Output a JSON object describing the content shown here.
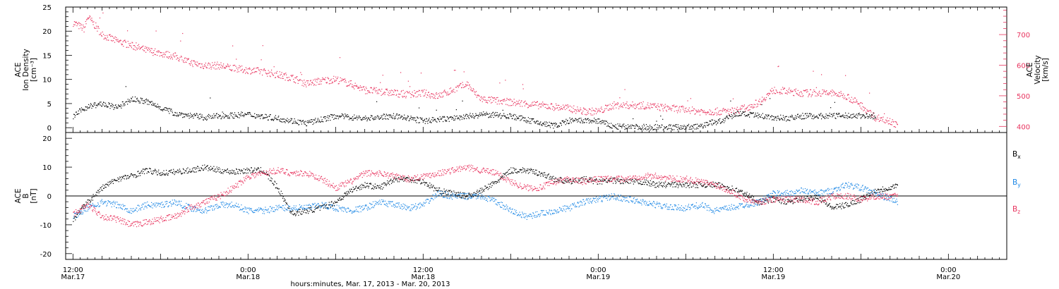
{
  "chart_data": [
    {
      "type": "scatter",
      "panel": "plasma",
      "ylabel_lines": [
        "ACE",
        "Ion Density",
        "[cm⁻³]"
      ],
      "y2label_lines": [
        "ACE",
        "Velocity",
        "[km/s]"
      ],
      "ylim": [
        -1,
        25
      ],
      "y_ticks": [
        0,
        5,
        10,
        15,
        20,
        25
      ],
      "y2lim": [
        380,
        790
      ],
      "y2_ticks": [
        400,
        500,
        600,
        700
      ],
      "colors": {
        "density": "#000000",
        "velocity": "#e8335e"
      },
      "series": [
        {
          "name": "",
          "axis": "left",
          "color": "#000000",
          "knots": [
            [
              0,
              2.5
            ],
            [
              2,
              4.5
            ],
            [
              4,
              5
            ],
            [
              6,
              4.2
            ],
            [
              8,
              6
            ],
            [
              10,
              5.5
            ],
            [
              14,
              3
            ],
            [
              18,
              2.2
            ],
            [
              20,
              2.5
            ],
            [
              24,
              2.8
            ],
            [
              28,
              2
            ],
            [
              32,
              1
            ],
            [
              36,
              2.5
            ],
            [
              40,
              2
            ],
            [
              44,
              2.5
            ],
            [
              48,
              1.5
            ],
            [
              52,
              2
            ],
            [
              56,
              2.8
            ],
            [
              60,
              2.5
            ],
            [
              64,
              1
            ],
            [
              66,
              0.5
            ],
            [
              68,
              1.5
            ],
            [
              72,
              1.5
            ],
            [
              74,
              0.3
            ],
            [
              78,
              0.2
            ],
            [
              82,
              0.2
            ],
            [
              86,
              0.3
            ],
            [
              87,
              1
            ],
            [
              89,
              1.5
            ],
            [
              91,
              3
            ],
            [
              94,
              2.5
            ],
            [
              98,
              2
            ],
            [
              100,
              2.5
            ],
            [
              104,
              2.5
            ],
            [
              108,
              2.6
            ],
            [
              110,
              2.2
            ]
          ]
        },
        {
          "name": "",
          "axis": "right",
          "color": "#e8335e",
          "knots": [
            [
              0,
              740
            ],
            [
              1.5,
              720
            ],
            [
              2,
              760
            ],
            [
              4,
              700
            ],
            [
              6,
              680
            ],
            [
              10,
              650
            ],
            [
              14,
              630
            ],
            [
              16,
              610
            ],
            [
              18,
              600
            ],
            [
              20,
              600
            ],
            [
              22,
              590
            ],
            [
              26,
              580
            ],
            [
              30,
              560
            ],
            [
              32,
              540
            ],
            [
              34,
              550
            ],
            [
              36,
              555
            ],
            [
              38,
              540
            ],
            [
              40,
              520
            ],
            [
              42,
              515
            ],
            [
              44,
              510
            ],
            [
              46,
              505
            ],
            [
              48,
              510
            ],
            [
              50,
              500
            ],
            [
              52,
              520
            ],
            [
              54,
              540
            ],
            [
              55,
              510
            ],
            [
              56,
              490
            ],
            [
              60,
              480
            ],
            [
              64,
              470
            ],
            [
              68,
              460
            ],
            [
              70,
              450
            ],
            [
              72,
              450
            ],
            [
              74,
              470
            ],
            [
              78,
              470
            ],
            [
              82,
              460
            ],
            [
              86,
              450
            ],
            [
              90,
              450
            ],
            [
              92,
              460
            ],
            [
              94,
              480
            ],
            [
              96,
              520
            ],
            [
              100,
              510
            ],
            [
              104,
              510
            ],
            [
              106,
              500
            ],
            [
              108,
              470
            ],
            [
              110,
              430
            ],
            [
              112,
              420
            ],
            [
              113,
              400
            ]
          ]
        }
      ]
    },
    {
      "type": "scatter",
      "panel": "imf",
      "ylabel_lines": [
        "ACE",
        "B",
        "[nT]"
      ],
      "ylim": [
        -22,
        22
      ],
      "y_ticks": [
        -20,
        -10,
        0,
        10,
        20
      ],
      "zero_line": true,
      "series": [
        {
          "name": "Bx",
          "color": "#000000",
          "knots": [
            [
              0,
              -8
            ],
            [
              2,
              -2
            ],
            [
              4,
              3
            ],
            [
              6,
              6
            ],
            [
              8,
              7
            ],
            [
              10,
              9
            ],
            [
              12,
              8
            ],
            [
              16,
              9
            ],
            [
              18,
              10
            ],
            [
              20,
              9
            ],
            [
              22,
              8.5
            ],
            [
              24,
              9
            ],
            [
              26,
              9
            ],
            [
              28,
              3
            ],
            [
              30,
              -6
            ],
            [
              32,
              -5
            ],
            [
              34,
              -4
            ],
            [
              36,
              -2
            ],
            [
              38,
              2
            ],
            [
              40,
              4
            ],
            [
              42,
              3
            ],
            [
              44,
              6
            ],
            [
              46,
              6
            ],
            [
              48,
              5
            ],
            [
              50,
              2
            ],
            [
              52,
              1
            ],
            [
              54,
              0
            ],
            [
              56,
              2
            ],
            [
              58,
              5
            ],
            [
              60,
              9
            ],
            [
              62,
              9
            ],
            [
              64,
              8
            ],
            [
              66,
              6
            ],
            [
              68,
              5
            ],
            [
              70,
              6
            ],
            [
              72,
              5
            ],
            [
              74,
              5.5
            ],
            [
              76,
              5
            ],
            [
              78,
              5
            ],
            [
              80,
              4
            ],
            [
              82,
              4
            ],
            [
              84,
              4
            ],
            [
              86,
              4
            ],
            [
              88,
              4
            ],
            [
              90,
              3
            ],
            [
              92,
              1
            ],
            [
              94,
              -2
            ],
            [
              96,
              -1
            ],
            [
              98,
              -2
            ],
            [
              100,
              -1
            ],
            [
              102,
              0
            ],
            [
              104,
              -4
            ],
            [
              106,
              -3
            ],
            [
              108,
              -1
            ],
            [
              110,
              2
            ],
            [
              112,
              3
            ],
            [
              113,
              4
            ]
          ]
        },
        {
          "name": "By",
          "color": "#1e88e5",
          "knots": [
            [
              0,
              -7
            ],
            [
              2,
              -4
            ],
            [
              4,
              -2
            ],
            [
              6,
              -3
            ],
            [
              8,
              -5
            ],
            [
              10,
              -3
            ],
            [
              12,
              -3
            ],
            [
              14,
              -2
            ],
            [
              16,
              -4
            ],
            [
              18,
              -5
            ],
            [
              20,
              -3
            ],
            [
              22,
              -3
            ],
            [
              24,
              -5
            ],
            [
              26,
              -5
            ],
            [
              28,
              -4
            ],
            [
              30,
              -4
            ],
            [
              32,
              -4
            ],
            [
              34,
              -3
            ],
            [
              36,
              -4
            ],
            [
              38,
              -5
            ],
            [
              40,
              -4
            ],
            [
              42,
              -2
            ],
            [
              44,
              -3
            ],
            [
              46,
              -4
            ],
            [
              48,
              -3
            ],
            [
              50,
              1
            ],
            [
              52,
              0
            ],
            [
              54,
              0
            ],
            [
              56,
              0
            ],
            [
              58,
              -2
            ],
            [
              60,
              -5
            ],
            [
              62,
              -7
            ],
            [
              64,
              -6
            ],
            [
              66,
              -5
            ],
            [
              68,
              -4
            ],
            [
              70,
              -2
            ],
            [
              72,
              -1
            ],
            [
              74,
              0
            ],
            [
              76,
              -1
            ],
            [
              78,
              -2
            ],
            [
              80,
              -3
            ],
            [
              82,
              -4
            ],
            [
              84,
              -4
            ],
            [
              86,
              -3
            ],
            [
              88,
              -5
            ],
            [
              90,
              -4
            ],
            [
              92,
              -3
            ],
            [
              94,
              -2
            ],
            [
              96,
              1
            ],
            [
              98,
              1
            ],
            [
              100,
              2
            ],
            [
              102,
              1
            ],
            [
              104,
              2
            ],
            [
              106,
              4
            ],
            [
              108,
              3
            ],
            [
              110,
              1
            ],
            [
              112,
              -1
            ],
            [
              113,
              -2
            ]
          ]
        },
        {
          "name": "Bz",
          "color": "#e8335e",
          "knots": [
            [
              0,
              -6
            ],
            [
              2,
              -3
            ],
            [
              4,
              -7
            ],
            [
              6,
              -8
            ],
            [
              8,
              -10
            ],
            [
              10,
              -9
            ],
            [
              12,
              -8
            ],
            [
              14,
              -7
            ],
            [
              16,
              -4
            ],
            [
              18,
              -2
            ],
            [
              20,
              0
            ],
            [
              22,
              3
            ],
            [
              24,
              7
            ],
            [
              26,
              8
            ],
            [
              28,
              9
            ],
            [
              30,
              8
            ],
            [
              32,
              8
            ],
            [
              34,
              6
            ],
            [
              36,
              3
            ],
            [
              38,
              5
            ],
            [
              40,
              8
            ],
            [
              42,
              8
            ],
            [
              44,
              7
            ],
            [
              46,
              6
            ],
            [
              48,
              7
            ],
            [
              50,
              8
            ],
            [
              52,
              9
            ],
            [
              54,
              10
            ],
            [
              56,
              9
            ],
            [
              58,
              8
            ],
            [
              60,
              5
            ],
            [
              62,
              3
            ],
            [
              64,
              3
            ],
            [
              66,
              5
            ],
            [
              68,
              6
            ],
            [
              70,
              5
            ],
            [
              72,
              6
            ],
            [
              74,
              6
            ],
            [
              76,
              6
            ],
            [
              78,
              7
            ],
            [
              80,
              7
            ],
            [
              82,
              6
            ],
            [
              84,
              6
            ],
            [
              86,
              5
            ],
            [
              88,
              4
            ],
            [
              90,
              2
            ],
            [
              92,
              -1
            ],
            [
              94,
              -2
            ],
            [
              96,
              -1
            ],
            [
              98,
              -1
            ],
            [
              100,
              -1
            ],
            [
              102,
              -2
            ],
            [
              104,
              0
            ],
            [
              106,
              0
            ],
            [
              108,
              -1
            ],
            [
              110,
              0
            ],
            [
              112,
              0
            ],
            [
              113,
              0
            ]
          ]
        }
      ],
      "legend": [
        {
          "main": "B",
          "sub": "x",
          "color": "#000000"
        },
        {
          "main": "B",
          "sub": "y",
          "color": "#1e88e5"
        },
        {
          "main": "B",
          "sub": "z",
          "color": "#e8335e"
        }
      ]
    }
  ],
  "x_axis": {
    "xlim_hours": [
      -1,
      128
    ],
    "xlabel": "hours:minutes, Mar. 17, 2013 - Mar. 20, 2013",
    "tick_labels": [
      {
        "h": 0,
        "time": "12:00",
        "date": "Mar.17"
      },
      {
        "h": 24,
        "time": "0:00",
        "date": "Mar.18"
      },
      {
        "h": 48,
        "time": "12:00",
        "date": "Mar.18"
      },
      {
        "h": 72,
        "time": "0:00",
        "date": "Mar.19"
      },
      {
        "h": 96,
        "time": "12:00",
        "date": "Mar.19"
      },
      {
        "h": 120,
        "time": "0:00",
        "date": "Mar.20"
      },
      {
        "h": 144,
        "time": "12:00",
        "date": "Mar.20"
      }
    ]
  }
}
